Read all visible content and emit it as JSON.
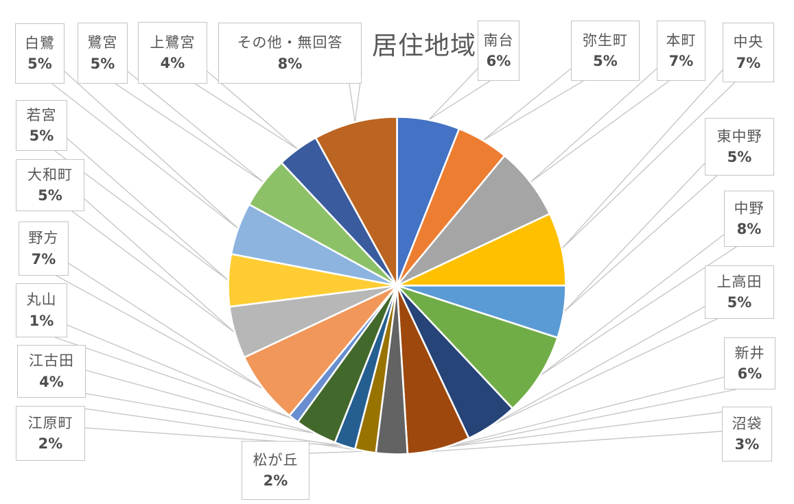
{
  "chart_data": {
    "type": "pie",
    "title": "居住地域",
    "direction": "clockwise",
    "start_angle_deg": 0,
    "unit": "percent",
    "total": 100,
    "legend": "none",
    "label_style": "callout boxes with name and percent connected by leader lines",
    "slices": [
      {
        "label": "南台",
        "value": 6,
        "pct": "6%",
        "color": "#4472C4"
      },
      {
        "label": "弥生町",
        "value": 5,
        "pct": "5%",
        "color": "#ED7D31"
      },
      {
        "label": "本町",
        "value": 7,
        "pct": "7%",
        "color": "#A5A5A5"
      },
      {
        "label": "中央",
        "value": 7,
        "pct": "7%",
        "color": "#FFC000"
      },
      {
        "label": "東中野",
        "value": 5,
        "pct": "5%",
        "color": "#5B9BD5"
      },
      {
        "label": "中野",
        "value": 8,
        "pct": "8%",
        "color": "#70AD47"
      },
      {
        "label": "上高田",
        "value": 5,
        "pct": "5%",
        "color": "#264478"
      },
      {
        "label": "新井",
        "value": 6,
        "pct": "6%",
        "color": "#9E480E"
      },
      {
        "label": "沼袋",
        "value": 3,
        "pct": "3%",
        "color": "#636363"
      },
      {
        "label": "松が丘",
        "value": 2,
        "pct": "2%",
        "color": "#997300"
      },
      {
        "label": "江原町",
        "value": 2,
        "pct": "2%",
        "color": "#255E91"
      },
      {
        "label": "江古田",
        "value": 4,
        "pct": "4%",
        "color": "#43682B"
      },
      {
        "label": "丸山",
        "value": 1,
        "pct": "1%",
        "color": "#698ED0"
      },
      {
        "label": "野方",
        "value": 7,
        "pct": "7%",
        "color": "#F1975A"
      },
      {
        "label": "大和町",
        "value": 5,
        "pct": "5%",
        "color": "#B7B7B7"
      },
      {
        "label": "若宮",
        "value": 5,
        "pct": "5%",
        "color": "#FFCD33"
      },
      {
        "label": "白鷺",
        "value": 5,
        "pct": "5%",
        "color": "#8CB4DF"
      },
      {
        "label": "鷺宮",
        "value": 5,
        "pct": "5%",
        "color": "#8CC168"
      },
      {
        "label": "上鷺宮",
        "value": 4,
        "pct": "4%",
        "color": "#3A5B9E"
      },
      {
        "label": "その他・無回答",
        "value": 8,
        "pct": "8%",
        "color": "#BC6421"
      }
    ],
    "styles": {
      "background": "#FFFFFF",
      "title_color": "#595959",
      "label_text_color": "#575757",
      "label_border_color": "#C3C3C3",
      "leader_line_color": "#C6C6C6"
    }
  }
}
